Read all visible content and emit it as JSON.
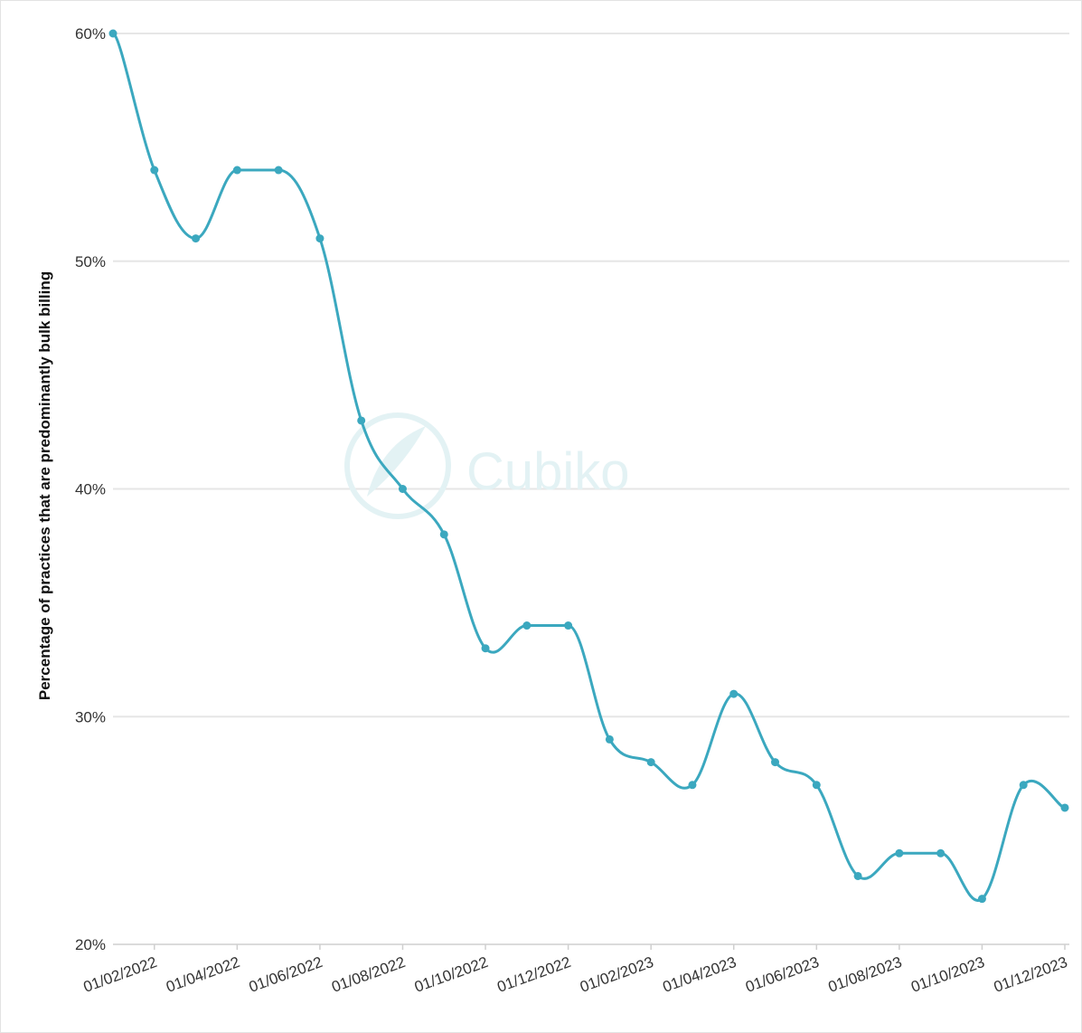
{
  "chart_data": {
    "type": "line",
    "ylabel": "Percentage of practices that are predominantly bulk billing",
    "xlabel": "",
    "title": "",
    "watermark": "Cubiko",
    "line_color": "#3ba8bf",
    "grid": true,
    "ylim": [
      20,
      60
    ],
    "yticks": [
      "20%",
      "30%",
      "40%",
      "50%",
      "60%"
    ],
    "xtick_labels": [
      "01/02/2022",
      "01/04/2022",
      "01/06/2022",
      "01/08/2022",
      "01/10/2022",
      "01/12/2022",
      "01/02/2023",
      "01/04/2023",
      "01/06/2023",
      "01/08/2023",
      "01/10/2023",
      "01/12/2023"
    ],
    "x": [
      "01/01/2022",
      "01/02/2022",
      "01/03/2022",
      "01/04/2022",
      "01/05/2022",
      "01/06/2022",
      "01/07/2022",
      "01/08/2022",
      "01/09/2022",
      "01/10/2022",
      "01/11/2022",
      "01/12/2022",
      "01/01/2023",
      "01/02/2023",
      "01/03/2023",
      "01/04/2023",
      "01/05/2023",
      "01/06/2023",
      "01/07/2023",
      "01/08/2023",
      "01/09/2023",
      "01/10/2023",
      "01/11/2023",
      "01/12/2023"
    ],
    "series": [
      {
        "values": [
          60,
          54,
          51,
          54,
          54,
          51,
          43,
          40,
          38,
          33,
          34,
          34,
          29,
          28,
          27,
          31,
          28,
          27,
          23,
          24,
          24,
          22,
          27,
          26
        ]
      }
    ]
  }
}
